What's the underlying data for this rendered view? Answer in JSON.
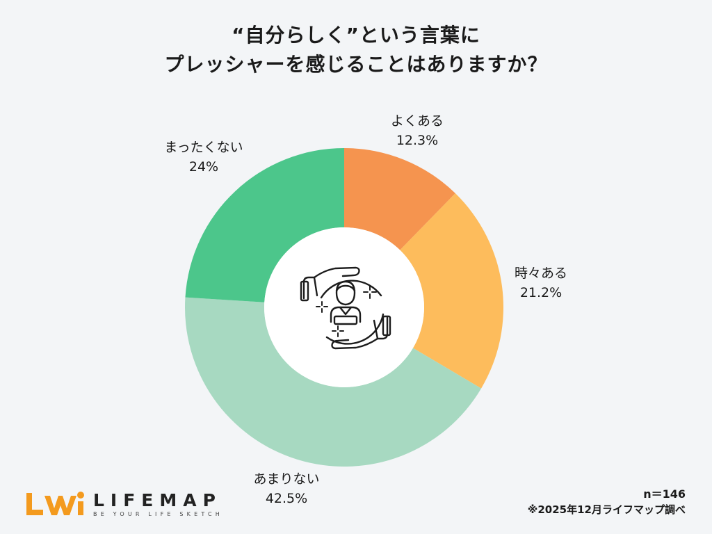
{
  "title": {
    "line1": "“自分らしく”という言葉に",
    "line2": "プレッシャーを感じることはありますか？"
  },
  "chart_data": {
    "type": "pie",
    "donut": true,
    "slices": [
      {
        "label": "よくある",
        "value": 12.3,
        "display": "12.3%",
        "color": "#f5944f"
      },
      {
        "label": "時々ある",
        "value": 21.2,
        "display": "21.2%",
        "color": "#fdbc5c"
      },
      {
        "label": "あまりない",
        "value": 42.5,
        "display": "42.5%",
        "color": "#a7d9c1"
      },
      {
        "label": "まったくない",
        "value": 24,
        "display": "24%",
        "color": "#4cc68b"
      }
    ]
  },
  "center_icon": "person-protected-by-hands-icon",
  "footer": {
    "sample_size": "n＝146",
    "source": "※2025年12月ライフマップ調べ"
  },
  "logo": {
    "wordmark": "LIFEMAP",
    "tagline": "BE YOUR LIFE SKETCH",
    "mark_color": "#f39a1e"
  }
}
